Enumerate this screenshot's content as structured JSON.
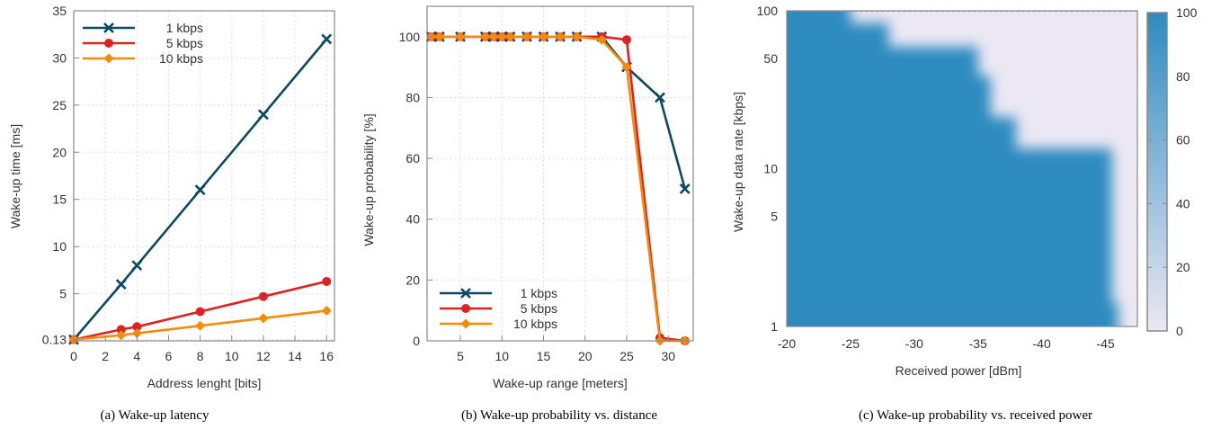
{
  "colors": {
    "k1": "#0b4a63",
    "k5": "#dd2222",
    "k10": "#f68b0a",
    "heat_high": "#2e8bc0",
    "heat_low": "#ece8f3",
    "frame": "#888888",
    "grid": "#dddddd"
  },
  "chart_data": [
    {
      "type": "line",
      "caption": "(a) Wake-up latency",
      "xlabel": "Address lenght [bits]",
      "ylabel": "Wake-up time [ms]",
      "xlim": [
        0,
        16.5
      ],
      "ylim": [
        0,
        35
      ],
      "xticks": [
        "0",
        "2",
        "4",
        "6",
        "8",
        "10",
        "12",
        "14",
        "16"
      ],
      "yticks": [
        "0.13",
        "5",
        "10",
        "15",
        "20",
        "25",
        "30",
        "35"
      ],
      "legend_position": "top-left",
      "series": [
        {
          "name": "1 kbps",
          "marker": "x",
          "x": [
            0,
            3,
            4,
            8,
            12,
            16
          ],
          "y": [
            0.13,
            6,
            8,
            16,
            24,
            32
          ]
        },
        {
          "name": "5 kbps",
          "marker": "circle",
          "x": [
            0,
            3,
            4,
            8,
            12,
            16
          ],
          "y": [
            0.13,
            1.2,
            1.5,
            3.1,
            4.7,
            6.3
          ]
        },
        {
          "name": "10 kbps",
          "marker": "diamond",
          "x": [
            0,
            3,
            4,
            8,
            12,
            16
          ],
          "y": [
            0.13,
            0.6,
            0.8,
            1.6,
            2.4,
            3.2
          ]
        }
      ]
    },
    {
      "type": "line",
      "caption": "(b) Wake-up probability vs. distance",
      "xlabel": "Wake-up range [meters]",
      "ylabel": "Wake-up probability [%]",
      "xlim": [
        1,
        33
      ],
      "ylim": [
        0,
        110
      ],
      "xticks": [
        "5",
        "10",
        "15",
        "20",
        "25",
        "30"
      ],
      "yticks": [
        "0",
        "20",
        "40",
        "60",
        "80",
        "100"
      ],
      "legend_position": "bottom-left",
      "series": [
        {
          "name": "1 kbps",
          "marker": "x",
          "x": [
            1.5,
            2.5,
            5,
            8,
            9,
            10,
            11,
            13,
            15,
            17,
            19,
            22,
            25,
            29,
            32
          ],
          "y": [
            100,
            100,
            100,
            100,
            100,
            100,
            100,
            100,
            100,
            100,
            100,
            100,
            90,
            80,
            50
          ]
        },
        {
          "name": "5 kbps",
          "marker": "circle",
          "x": [
            1.5,
            2.5,
            5,
            8,
            9,
            10,
            11,
            13,
            15,
            17,
            19,
            22,
            25,
            29,
            32
          ],
          "y": [
            100,
            100,
            100,
            100,
            100,
            100,
            100,
            100,
            100,
            100,
            100,
            100,
            99,
            1,
            0
          ]
        },
        {
          "name": "10 kbps",
          "marker": "diamond",
          "x": [
            1.5,
            2.5,
            5,
            8,
            9,
            10,
            11,
            13,
            15,
            17,
            19,
            22,
            25,
            29,
            32
          ],
          "y": [
            100,
            100,
            100,
            100,
            100,
            100,
            100,
            100,
            100,
            100,
            100,
            99,
            90,
            0,
            0
          ]
        }
      ]
    },
    {
      "type": "heatmap",
      "caption": "(c) Wake-up probability vs. received power",
      "xlabel": "Received power [dBm]",
      "ylabel": "Wake-up data rate [kbps]",
      "xlim": [
        -20,
        -47.5
      ],
      "ylim": [
        1,
        100
      ],
      "y_scale": "log",
      "xticks": [
        "-20",
        "-25",
        "-30",
        "-35",
        "-40",
        "-45"
      ],
      "yticks": [
        "1",
        "5",
        "10",
        "50",
        "100"
      ],
      "colorbar": {
        "min": 0,
        "max": 100,
        "ticks": [
          "0",
          "20",
          "40",
          "60",
          "80",
          "100"
        ]
      },
      "sensitivity_threshold_dbm": [
        {
          "rate_kbps": 1,
          "power_dbm": -46
        },
        {
          "rate_kbps": 2,
          "power_dbm": -45.5
        },
        {
          "rate_kbps": 5,
          "power_dbm": -45.5
        },
        {
          "rate_kbps": 10,
          "power_dbm": -45.5
        },
        {
          "rate_kbps": 12,
          "power_dbm": -45.5
        },
        {
          "rate_kbps": 15,
          "power_dbm": -38
        },
        {
          "rate_kbps": 30,
          "power_dbm": -36
        },
        {
          "rate_kbps": 50,
          "power_dbm": -35
        },
        {
          "rate_kbps": 70,
          "power_dbm": -28
        },
        {
          "rate_kbps": 100,
          "power_dbm": -25
        }
      ]
    }
  ]
}
